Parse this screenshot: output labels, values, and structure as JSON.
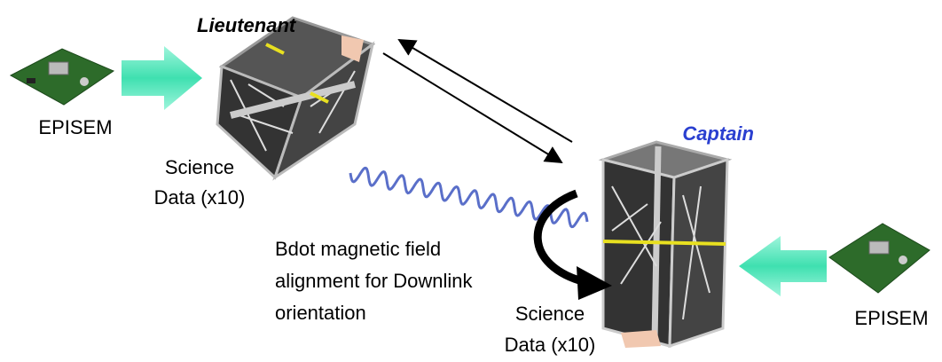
{
  "satellites": [
    {
      "label": "Lieutenant",
      "science": [
        "Science",
        "Data (x10)"
      ],
      "board": "EPISEM"
    },
    {
      "label": "Captain",
      "science": [
        "Science",
        "Data (x10)"
      ],
      "board": "EPISEM"
    }
  ],
  "annotation": [
    "Bdot magnetic field",
    "alignment for Downlink",
    "orientation"
  ]
}
